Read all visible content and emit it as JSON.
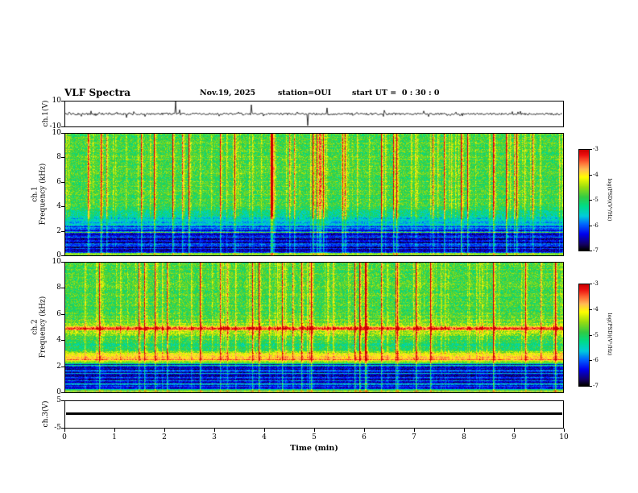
{
  "header": {
    "title": "VLF Spectra",
    "date": "Nov.19, 2025",
    "station": "station=OUI",
    "start_ut": "start UT =  0 : 30 : 0"
  },
  "chart_data": {
    "type": "heatmap",
    "title": "VLF Spectra",
    "xlabel": "Time (min)",
    "xlim": [
      0,
      10
    ],
    "xticks": [
      0,
      1,
      2,
      3,
      4,
      5,
      6,
      7,
      8,
      9,
      10
    ],
    "panels": [
      {
        "name": "ch1_voltage",
        "kind": "waveform",
        "ylabel": "ch.1(V)",
        "ylim": [
          -10,
          10
        ],
        "yticks": [
          10,
          -10
        ]
      },
      {
        "name": "ch1_spectrogram",
        "kind": "spectrogram",
        "ylabel_line1": "ch.1",
        "ylabel_line2": "Frequency (kHz)",
        "ylim": [
          0,
          10
        ],
        "yticks": [
          10,
          8,
          6,
          4,
          2,
          0
        ]
      },
      {
        "name": "ch2_spectrogram",
        "kind": "spectrogram",
        "ylabel_line1": "ch.2",
        "ylabel_line2": "Frequency (kHz)",
        "ylim": [
          0,
          10
        ],
        "yticks": [
          10,
          8,
          6,
          4,
          2,
          0
        ]
      },
      {
        "name": "ch3_voltage",
        "kind": "flatline",
        "ylabel": "ch.3(V)",
        "ylim": [
          -5,
          5
        ],
        "yticks": [
          5,
          -5
        ],
        "value": 0
      }
    ],
    "colorbars": [
      {
        "label": "log(PSD)(V²/Hz)",
        "ticks": [
          -3,
          -4,
          -5,
          -6,
          -7
        ],
        "range": [
          -7,
          -3
        ]
      },
      {
        "label": "log(PSD)(V²/Hz)",
        "ticks": [
          -3,
          -4,
          -5,
          -6,
          -7
        ],
        "range": [
          -7,
          -3
        ]
      }
    ],
    "colormap_stops": [
      {
        "t": 0.0,
        "color": "#000000"
      },
      {
        "t": 0.06,
        "color": "#140066"
      },
      {
        "t": 0.16,
        "color": "#0000EE"
      },
      {
        "t": 0.26,
        "color": "#0066FF"
      },
      {
        "t": 0.34,
        "color": "#00CCDD"
      },
      {
        "t": 0.44,
        "color": "#00DD88"
      },
      {
        "t": 0.53,
        "color": "#33CC44"
      },
      {
        "t": 0.63,
        "color": "#99DD11"
      },
      {
        "t": 0.73,
        "color": "#FFFF00"
      },
      {
        "t": 0.81,
        "color": "#FFBB55"
      },
      {
        "t": 0.88,
        "color": "#FF6633"
      },
      {
        "t": 0.95,
        "color": "#EE1111"
      },
      {
        "t": 1.0,
        "color": "#CC0000"
      }
    ]
  }
}
